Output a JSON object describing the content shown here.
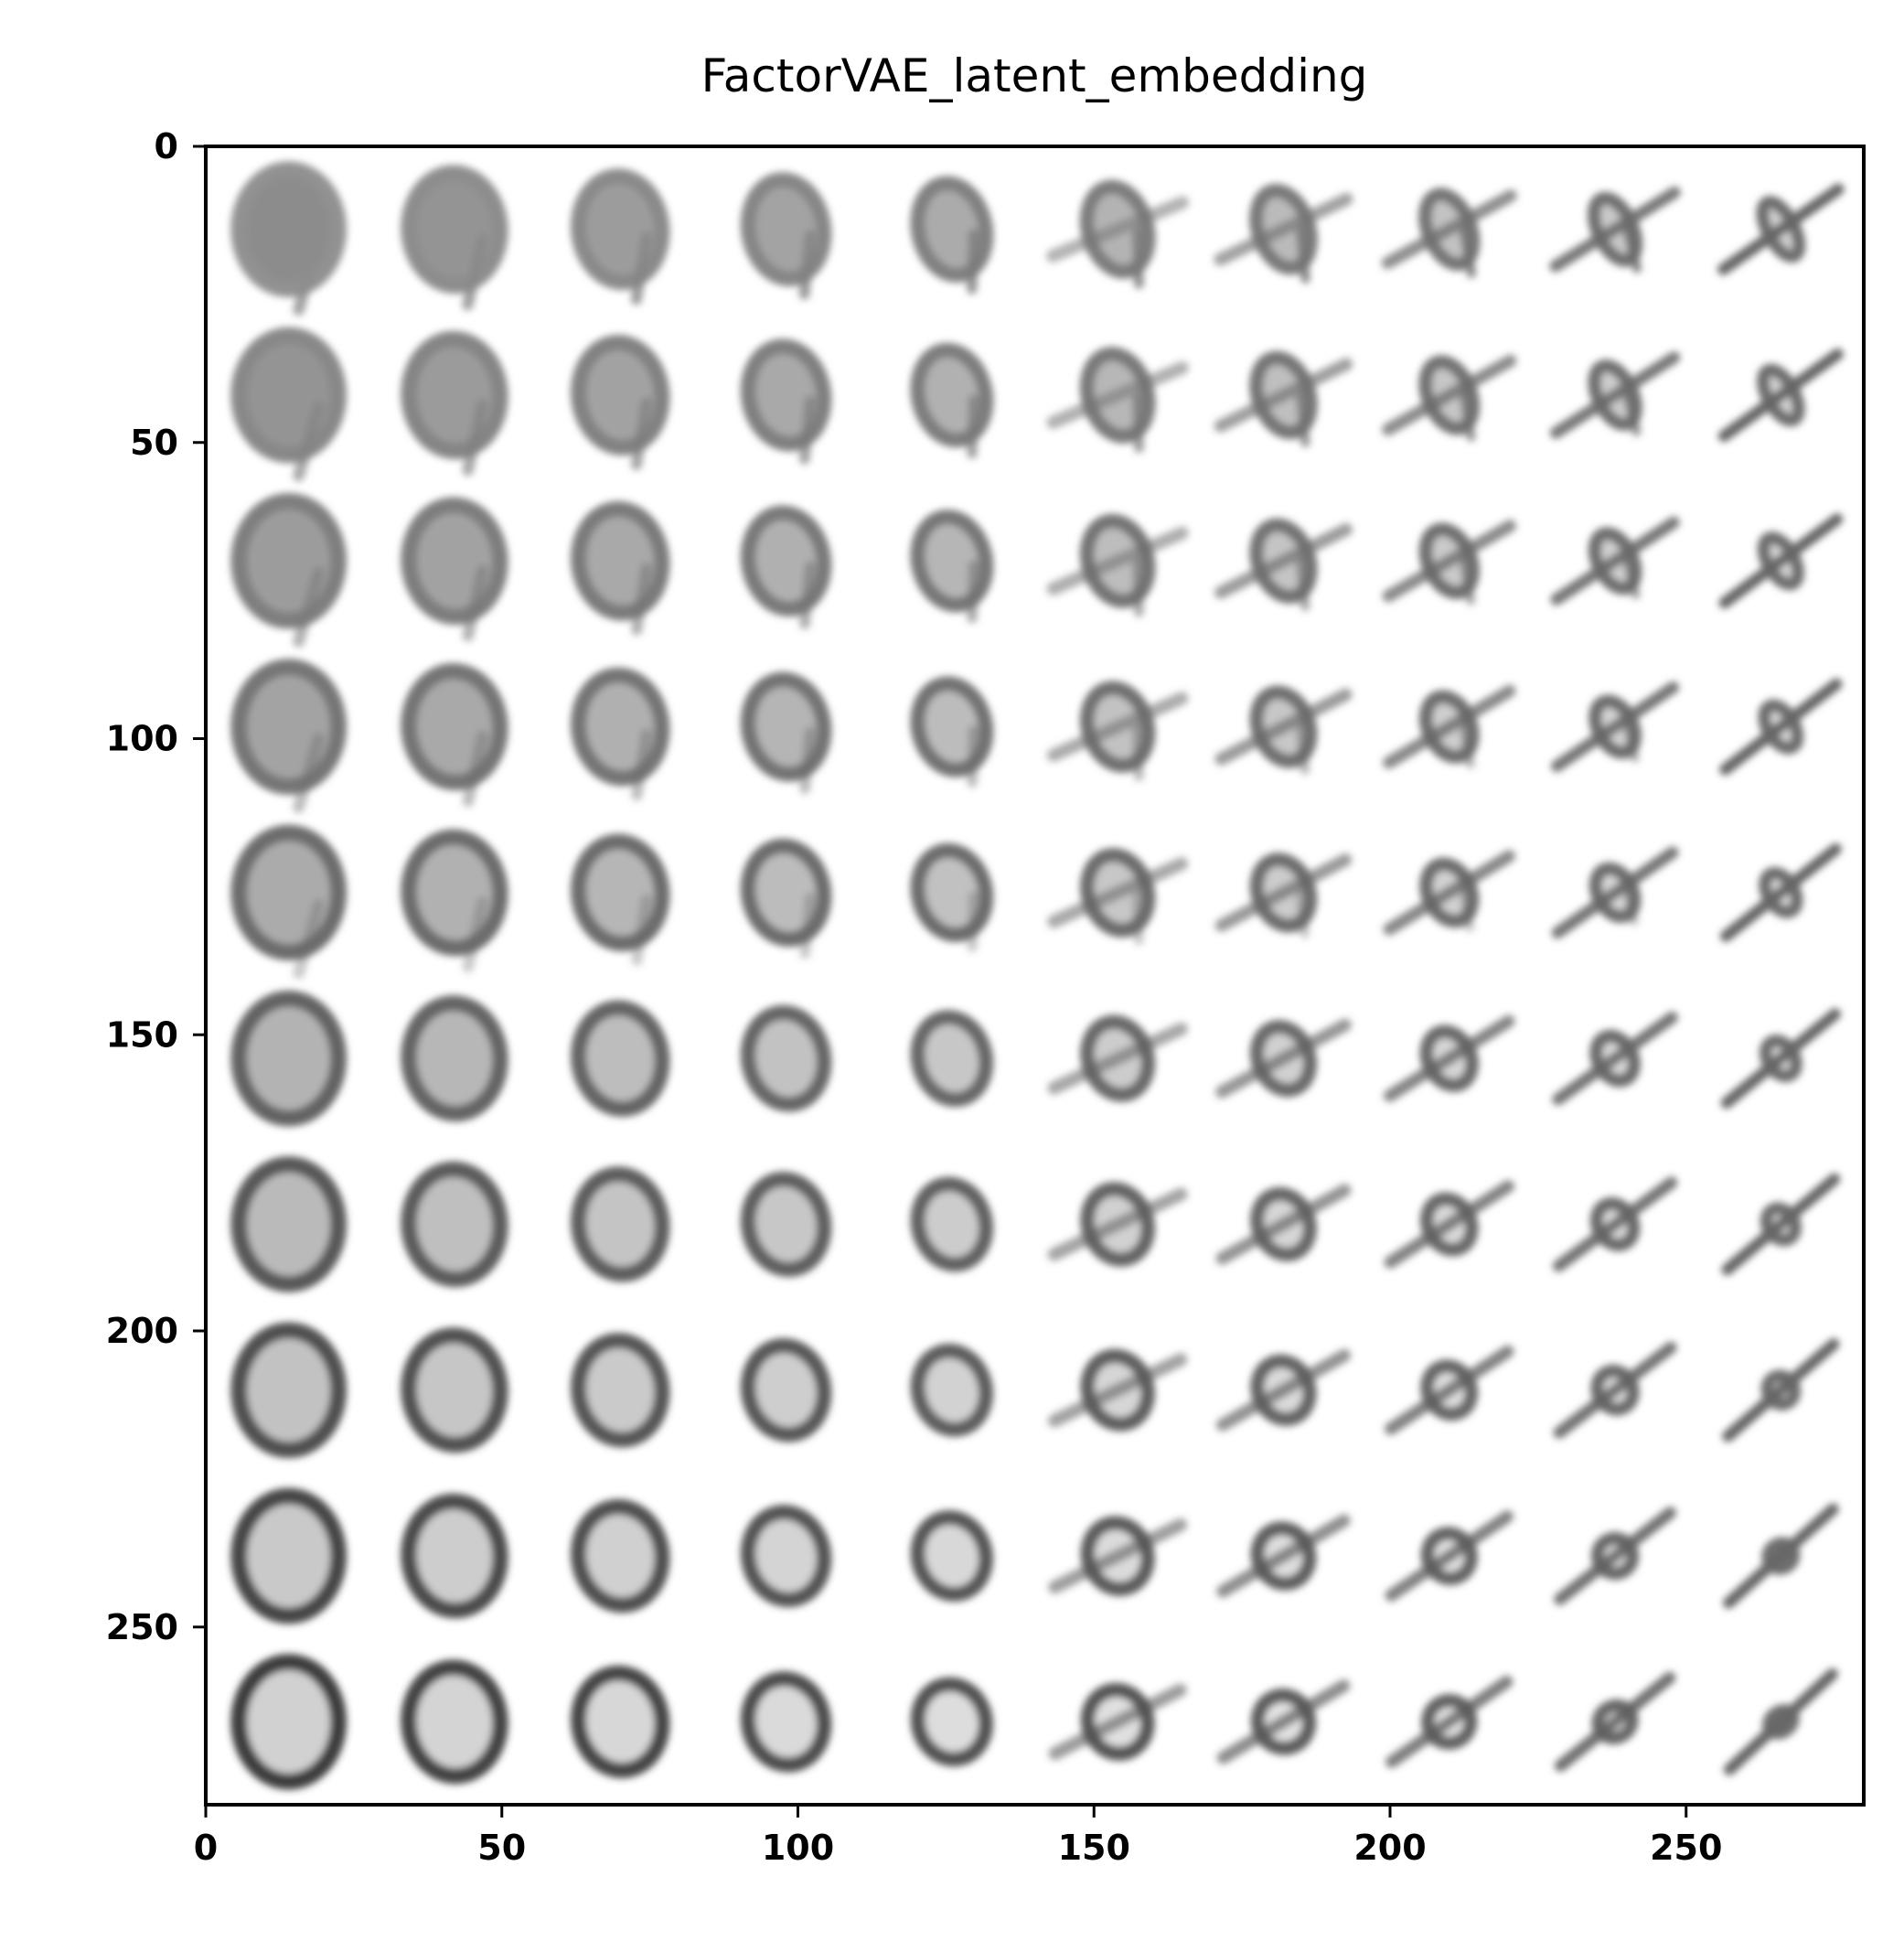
{
  "chart_data": {
    "type": "heatmap",
    "title": "FactorVAE_latent_embedding",
    "xlabel": "",
    "ylabel": "",
    "xlim": [
      0,
      280
    ],
    "ylim": [
      280,
      0
    ],
    "x_ticks": [
      0,
      50,
      100,
      150,
      200,
      250
    ],
    "y_ticks": [
      0,
      50,
      100,
      150,
      200,
      250
    ],
    "x_tick_labels": [
      "0",
      "50",
      "100",
      "150",
      "200",
      "250"
    ],
    "y_tick_labels": [
      "0",
      "50",
      "100",
      "150",
      "200",
      "250"
    ],
    "grid": false,
    "legend": "none",
    "colormap": "gray_r",
    "grid_rows": 10,
    "grid_cols": 10,
    "cell_size": 28,
    "description_glyphs": "decoded MNIST digits from latent traversal: rows go from 9-like shapes (top) to 0-like shapes (bottom), columns go from round digits (left) to slanted thin strokes (right)"
  }
}
